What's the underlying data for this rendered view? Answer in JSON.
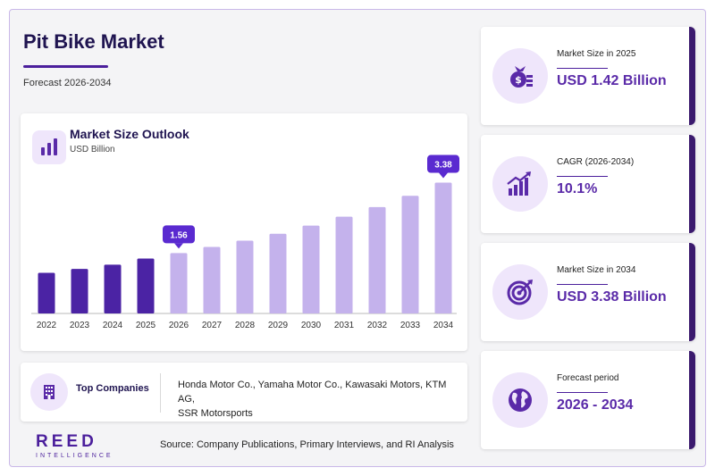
{
  "header": {
    "title": "Pit Bike Market",
    "subtitle": "Forecast 2026-2034"
  },
  "chart_card": {
    "title": "Market Size Outlook",
    "unit": "USD Billion"
  },
  "chart_data": {
    "type": "bar",
    "title": "Market Size Outlook",
    "ylabel": "USD Billion",
    "categories": [
      "2022",
      "2023",
      "2024",
      "2025",
      "2026",
      "2027",
      "2028",
      "2029",
      "2030",
      "2031",
      "2032",
      "2033",
      "2034"
    ],
    "values": [
      1.05,
      1.15,
      1.26,
      1.42,
      1.56,
      1.72,
      1.88,
      2.06,
      2.27,
      2.5,
      2.75,
      3.04,
      3.38
    ],
    "historical_count": 4,
    "ylim": [
      0,
      3.6
    ],
    "data_labels": [
      {
        "category": "2026",
        "label": "1.56"
      },
      {
        "category": "2034",
        "label": "3.38"
      }
    ],
    "colors": {
      "historical": "#4b23a4",
      "forecast": "#c4b2ec",
      "callout": "#5a2ad0"
    },
    "grid": false,
    "legend": "none"
  },
  "companies": {
    "label": "Top Companies",
    "lines": [
      "Honda Motor Co., Yamaha Motor Co., Kawasaki Motors, KTM AG,",
      "SSR Motorsports"
    ]
  },
  "logo": {
    "main": "REED",
    "sub": "INTELLIGENCE"
  },
  "source": "Source: Company Publications, Primary Interviews, and RI Analysis",
  "stats": [
    {
      "label": "Market Size in 2025",
      "value": "USD 1.42 Billion",
      "icon": "money-bag-icon"
    },
    {
      "label": "CAGR (2026-2034)",
      "value": "10.1%",
      "icon": "growth-chart-icon"
    },
    {
      "label": "Market Size in 2034",
      "value": "USD 3.38 Billion",
      "icon": "target-icon"
    },
    {
      "label": "Forecast period",
      "value": "2026 - 2034",
      "icon": "globe-icon"
    }
  ],
  "colors": {
    "accent": "#5a2aa8",
    "dark": "#1f1450",
    "card_border": "#3b1a6e",
    "icon_bg": "#efe6fb"
  }
}
